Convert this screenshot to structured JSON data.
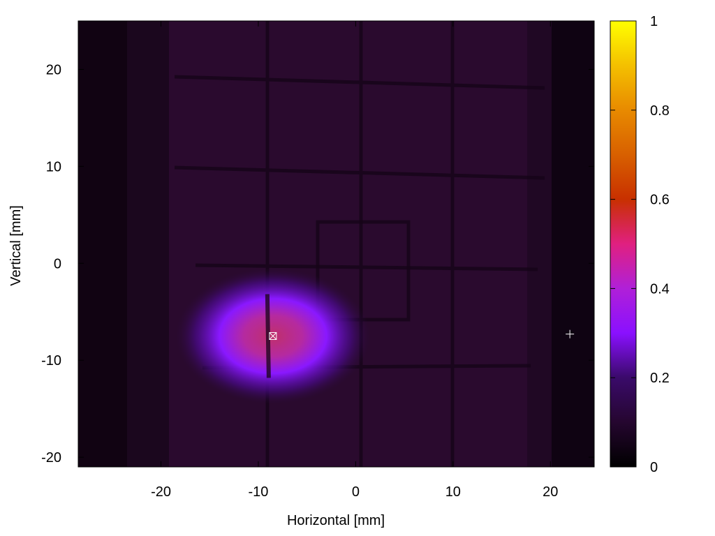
{
  "chart_data": {
    "type": "heatmap",
    "title": "",
    "xlabel": "Horizontal [mm]",
    "ylabel": "Vertical [mm]",
    "xlim": [
      -28.5,
      24.5
    ],
    "ylim": [
      -21,
      25
    ],
    "x_ticks": [
      -20,
      -10,
      0,
      10,
      20
    ],
    "y_ticks": [
      -20,
      -10,
      0,
      10,
      20
    ],
    "colorbar": {
      "range": [
        0,
        1
      ],
      "ticks": [
        "0",
        "0.2",
        "0.4",
        "0.6",
        "0.8",
        "1"
      ],
      "tick_values": [
        0,
        0.2,
        0.4,
        0.6,
        0.8,
        1
      ],
      "colors": [
        "#000000",
        "#3a0a6a",
        "#8a10ff",
        "#e020c0",
        "#c83000",
        "#e88a00",
        "#ffff00"
      ]
    },
    "background_intensity": 0.06,
    "beam_spot": {
      "center": [
        -8.5,
        -7.5
      ],
      "peak_intensity": 0.55,
      "sigma_x_mm": 4.0,
      "sigma_y_mm": 2.6
    },
    "markers": [
      {
        "name": "center-marker",
        "symbol": "boxed-x",
        "x": -8.5,
        "y": -7.5
      },
      {
        "name": "reference-marker",
        "symbol": "+",
        "x": 22,
        "y": -7.3
      }
    ]
  }
}
